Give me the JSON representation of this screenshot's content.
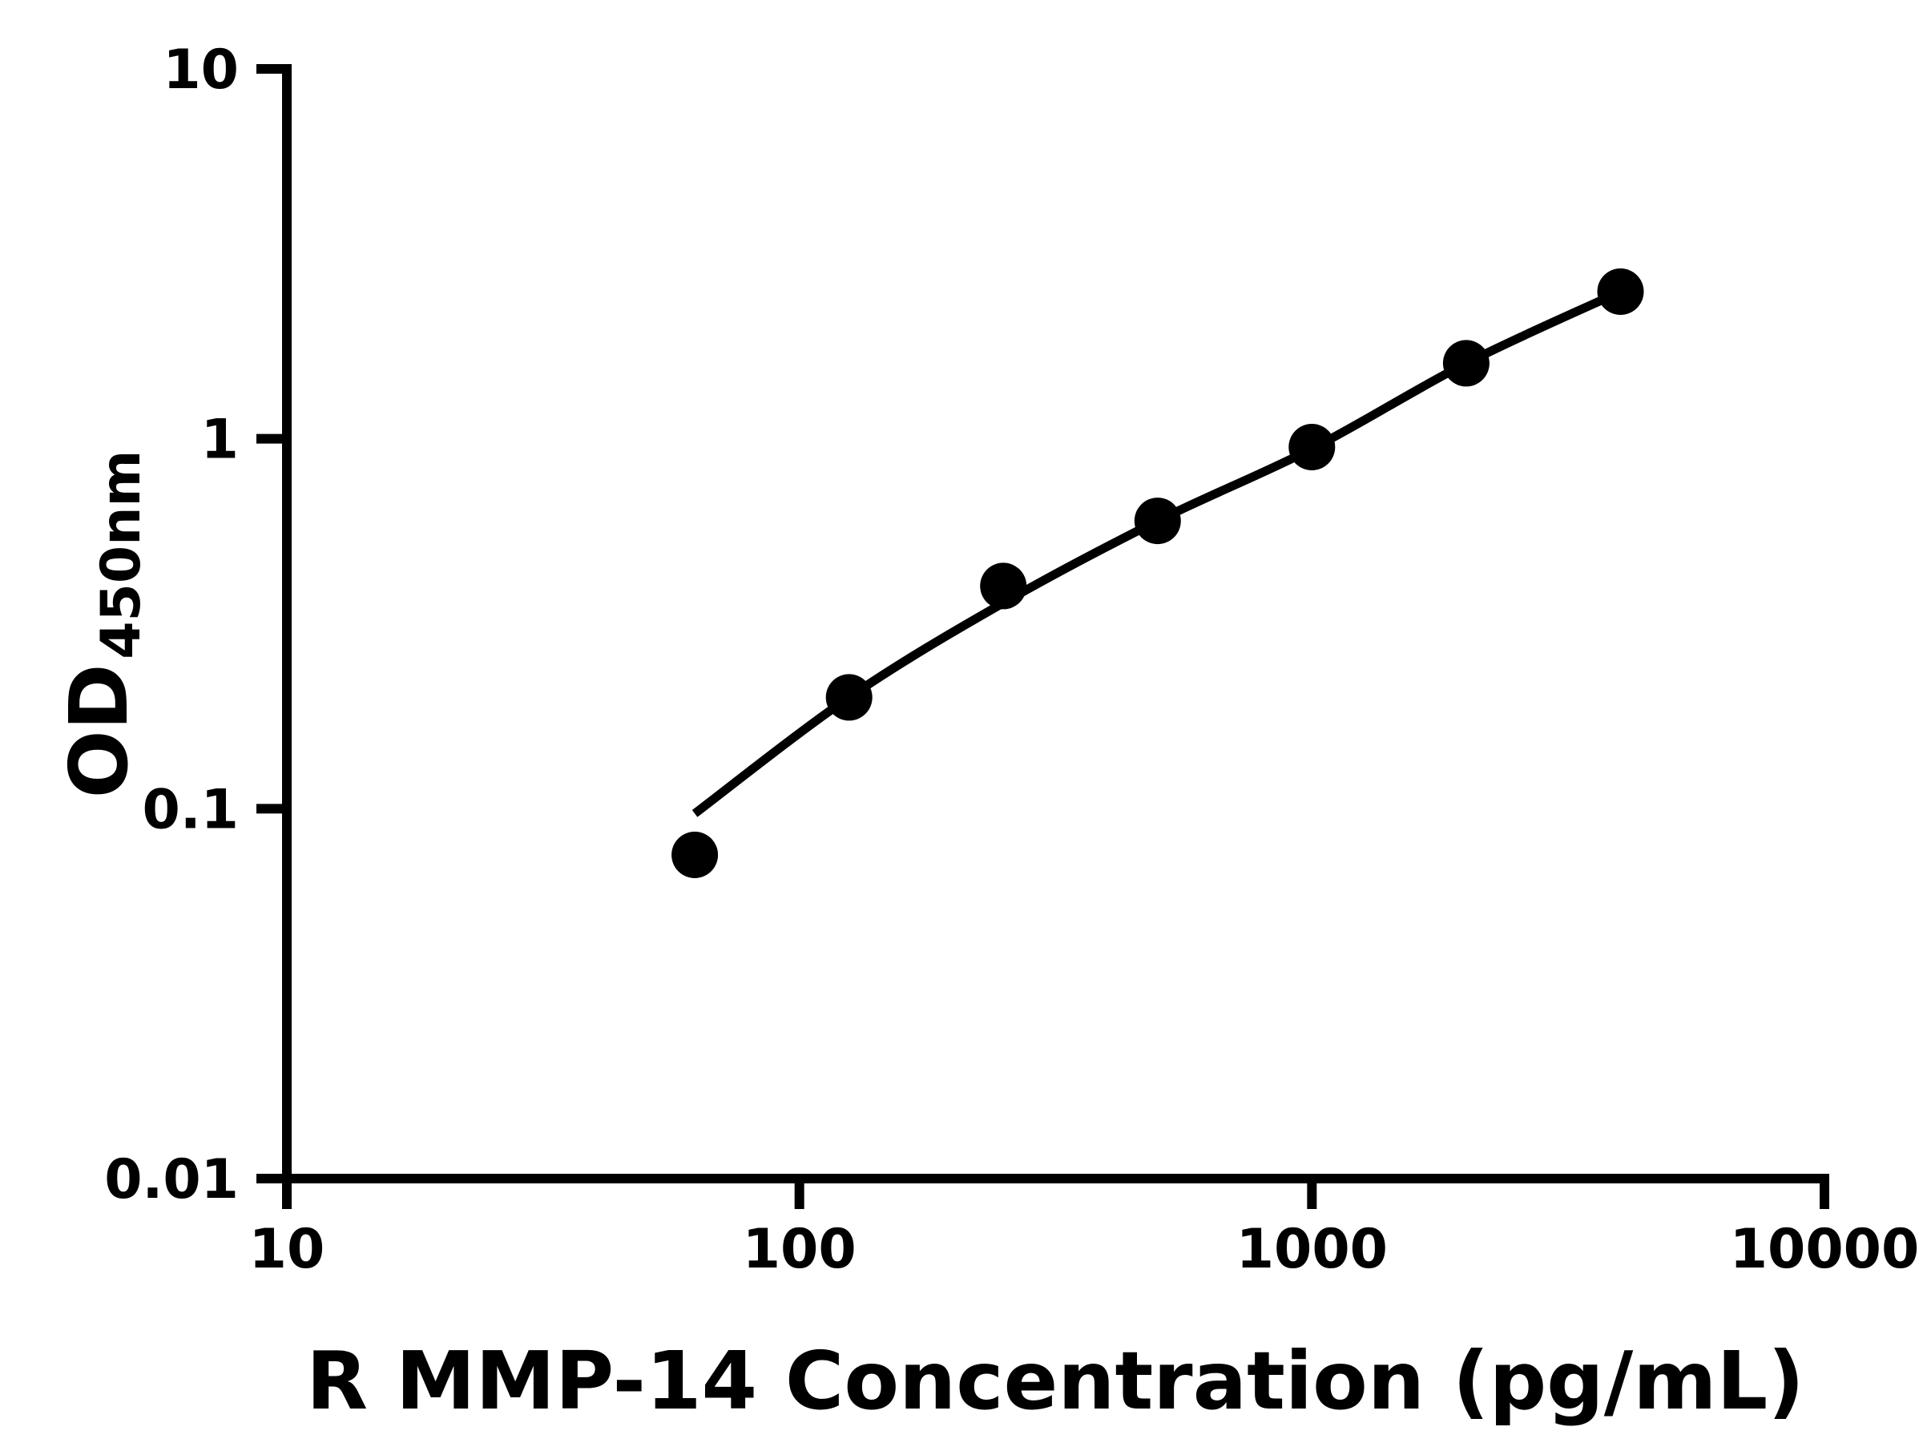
{
  "figure": {
    "background": "#ffffff",
    "axis_color": "#000000"
  },
  "chart_data": {
    "type": "scatter",
    "xlabel": "R MMP-14 Concentration (pg/mL)",
    "ylabel": "OD450nm",
    "ylabel_main": "OD",
    "ylabel_sub": "450nm",
    "x_scale": "log",
    "y_scale": "log",
    "xlim": [
      10,
      10000
    ],
    "ylim": [
      0.01,
      10
    ],
    "grid": false,
    "legend": null,
    "x_ticks": [
      {
        "value": 10,
        "label": "10"
      },
      {
        "value": 100,
        "label": "100"
      },
      {
        "value": 1000,
        "label": "1000"
      },
      {
        "value": 10000,
        "label": "10000"
      }
    ],
    "y_ticks": [
      {
        "value": 10,
        "label": "10"
      },
      {
        "value": 1,
        "label": "1"
      },
      {
        "value": 0.1,
        "label": "0.1"
      },
      {
        "value": 0.01,
        "label": "0.01"
      }
    ],
    "series": [
      {
        "name": "standard-points",
        "type": "scatter",
        "marker": "circle",
        "color": "#000000",
        "x": [
          62.5,
          125,
          250,
          500,
          1000,
          2000,
          4000
        ],
        "y": [
          0.075,
          0.2,
          0.4,
          0.6,
          0.95,
          1.6,
          2.5
        ]
      },
      {
        "name": "fitted-curve",
        "type": "line",
        "color": "#000000",
        "x": [
          62.5,
          125,
          250,
          500,
          1000,
          2000,
          4000
        ],
        "y": [
          0.097,
          0.2,
          0.36,
          0.6,
          0.94,
          1.6,
          2.5
        ]
      }
    ]
  }
}
